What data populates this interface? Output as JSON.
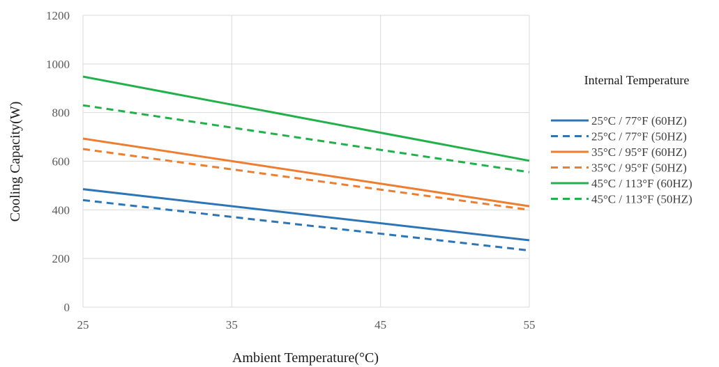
{
  "chart_data": {
    "type": "line",
    "xlabel": "Ambient Temperature(°C)",
    "ylabel": "Cooling Capacity(W)",
    "xlim": [
      25,
      55
    ],
    "ylim": [
      0,
      1200
    ],
    "x_ticks": [
      "25",
      "35",
      "45",
      "55"
    ],
    "y_ticks": [
      "0",
      "200",
      "400",
      "600",
      "800",
      "1000",
      "1200"
    ],
    "grid": true,
    "legend_title": "Internal Temperature",
    "legend_position": "right",
    "series": [
      {
        "name": "25°C / 77°F (60HZ)",
        "color": "#2e75b6",
        "dash": false,
        "x": [
          25,
          55
        ],
        "y": [
          485,
          275
        ]
      },
      {
        "name": "25°C / 77°F (50HZ)",
        "color": "#2e75b6",
        "dash": true,
        "x": [
          25,
          55
        ],
        "y": [
          440,
          233
        ]
      },
      {
        "name": "35°C / 95°F (60HZ)",
        "color": "#ed7d31",
        "dash": false,
        "x": [
          25,
          55
        ],
        "y": [
          693,
          415
        ]
      },
      {
        "name": "35°C / 95°F (50HZ)",
        "color": "#ed7d31",
        "dash": true,
        "x": [
          25,
          55
        ],
        "y": [
          650,
          400
        ]
      },
      {
        "name": "45°C / 113°F (60HZ)",
        "color": "#22b04b",
        "dash": false,
        "x": [
          25,
          55
        ],
        "y": [
          948,
          602
        ]
      },
      {
        "name": "45°C / 113°F (50HZ)",
        "color": "#22b04b",
        "dash": true,
        "x": [
          25,
          55
        ],
        "y": [
          830,
          555
        ]
      }
    ]
  }
}
